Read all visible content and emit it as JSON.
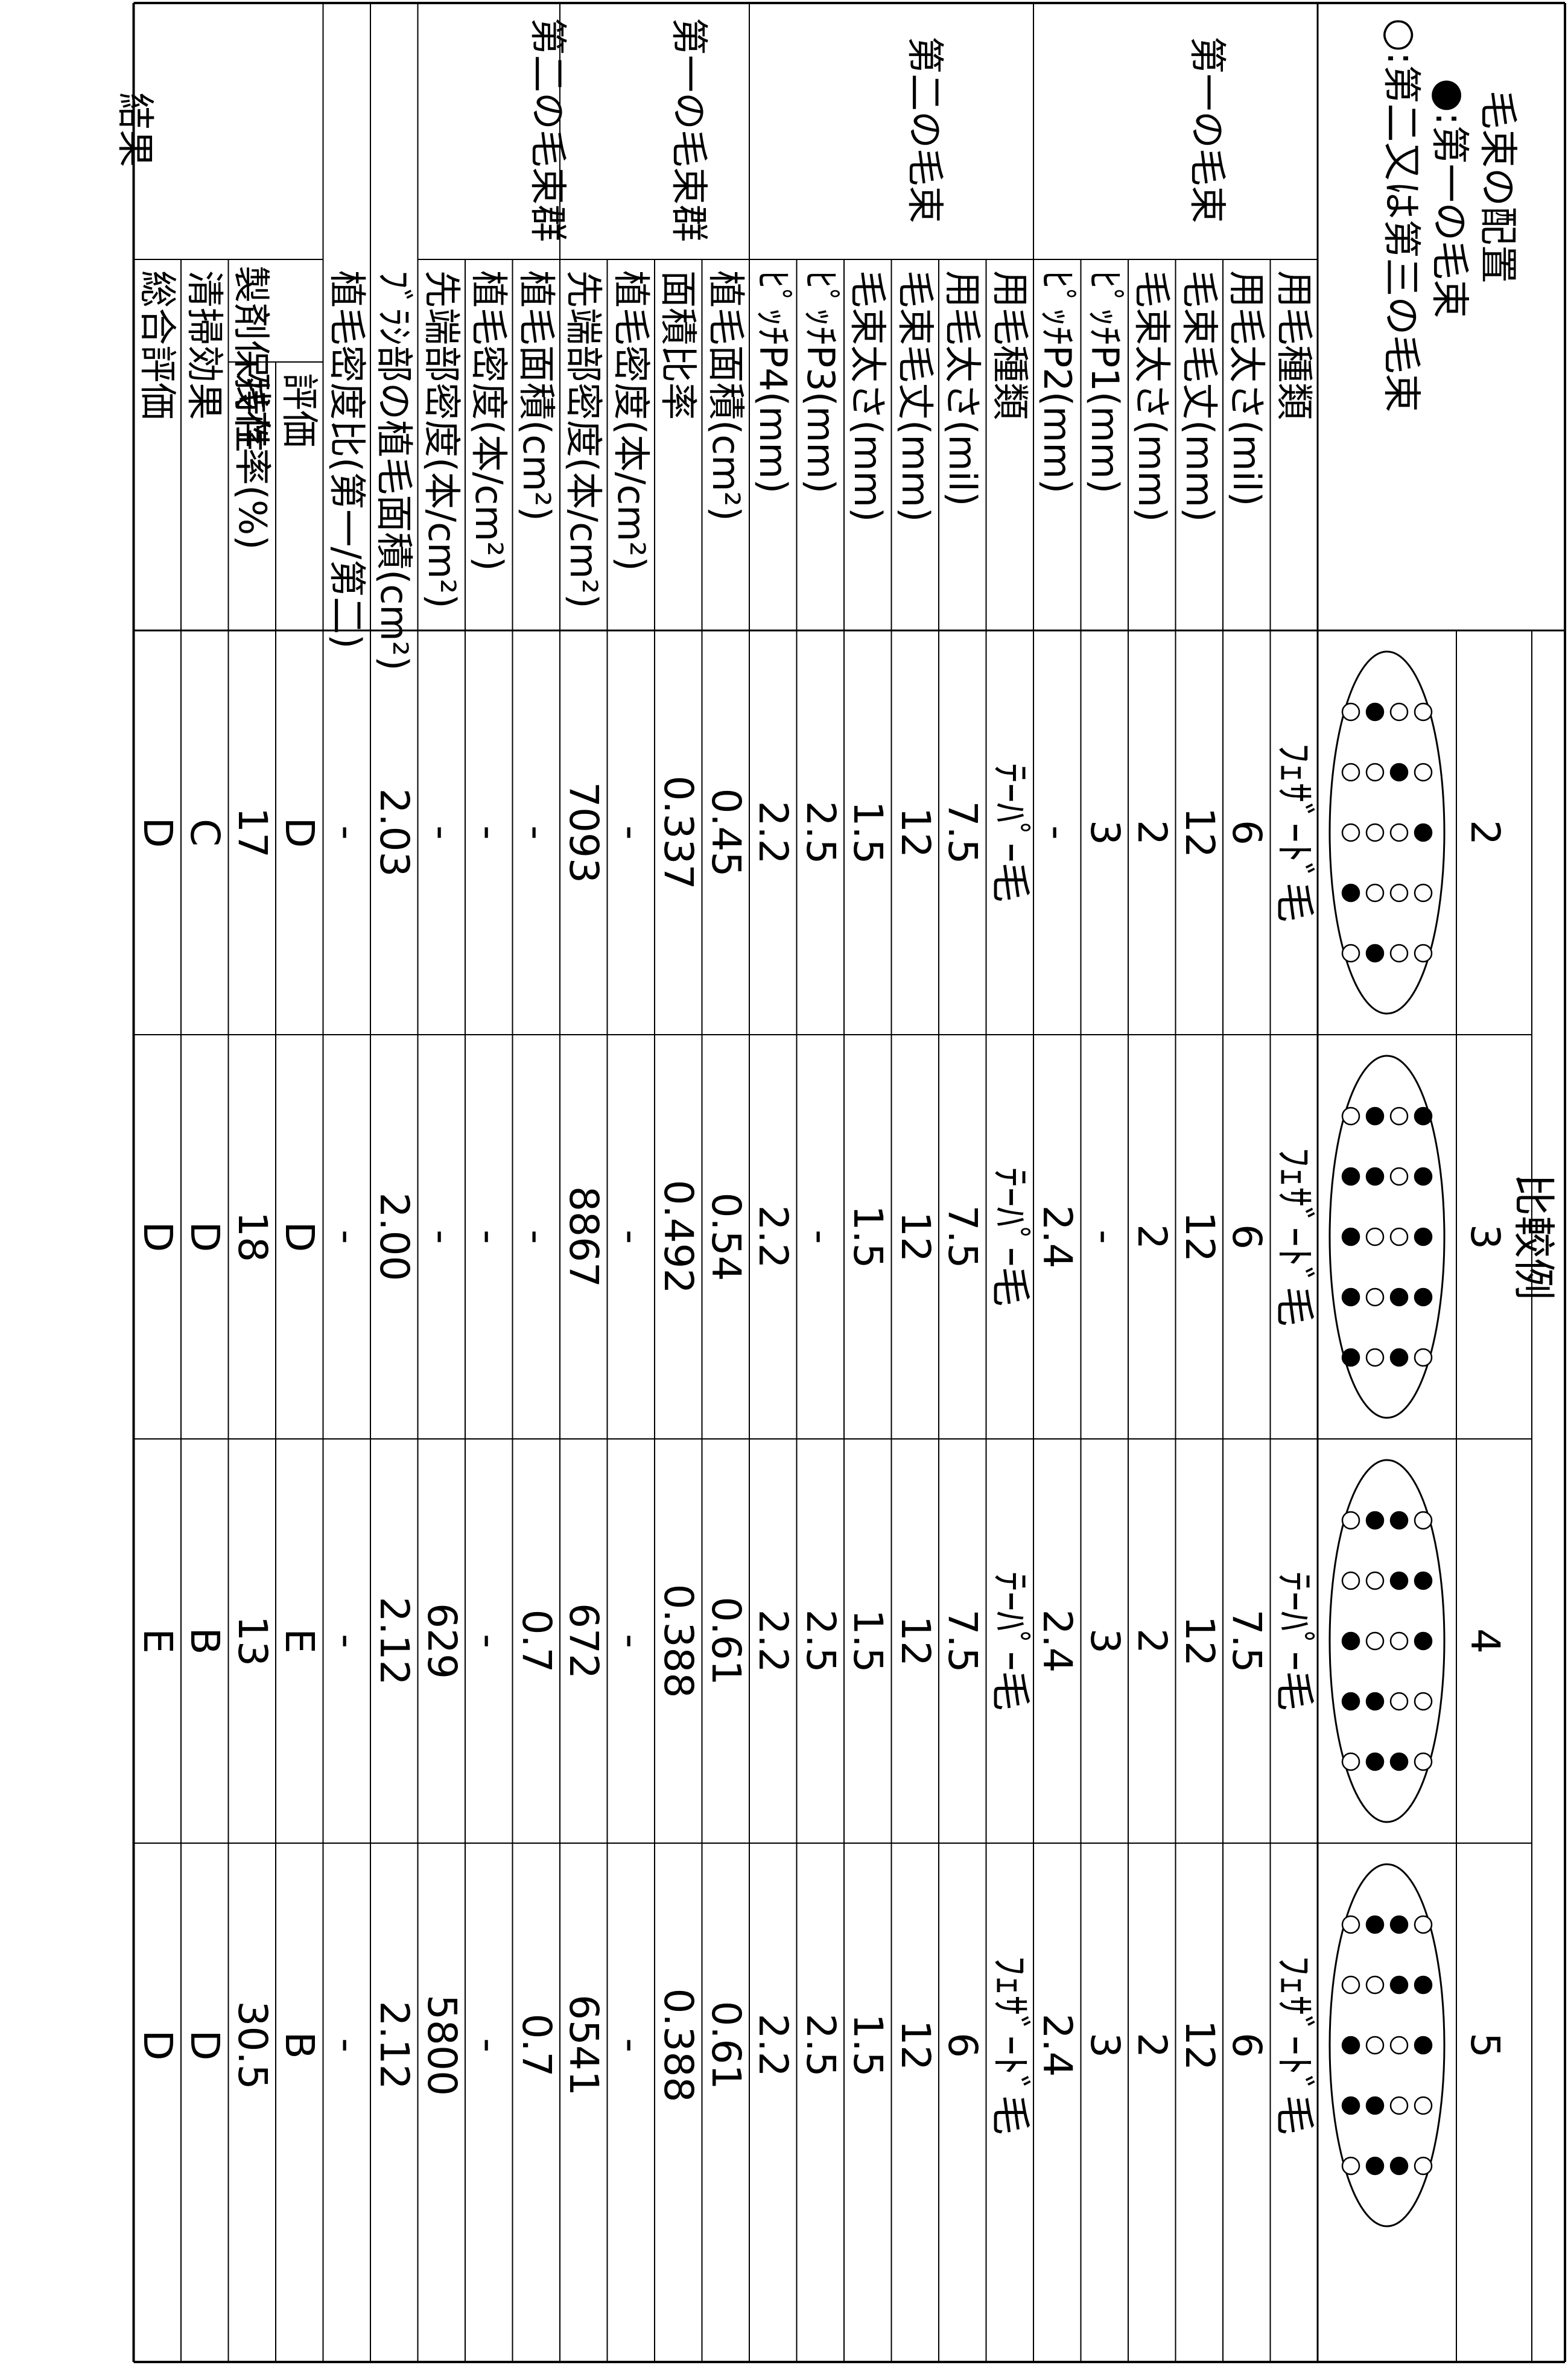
{
  "table": {
    "header": {
      "comparison_label": "比較例",
      "layout_title": "毛束の配置",
      "layout_legend_filled": "●:第一の毛束",
      "layout_legend_open": "○:第二又は第三の毛束"
    },
    "columns": [
      "2",
      "3",
      "4",
      "5"
    ],
    "groups": [
      {
        "label": "第一の毛束"
      },
      {
        "label": "第二の毛束"
      },
      {
        "label": "第一の毛束群"
      },
      {
        "label": "第二の毛束群"
      },
      {
        "label": "結果"
      }
    ],
    "rows": [
      {
        "label": "用毛種類",
        "values": [
          "ﾌｪｻﾞｰﾄﾞ毛",
          "ﾌｪｻﾞｰﾄﾞ毛",
          "ﾃｰﾊﾟｰ毛",
          "ﾌｪｻﾞｰﾄﾞ毛"
        ]
      },
      {
        "label": "用毛太さ(mil)",
        "values": [
          "6",
          "6",
          "7.5",
          "6"
        ]
      },
      {
        "label": "毛束毛丈(mm)",
        "values": [
          "12",
          "12",
          "12",
          "12"
        ]
      },
      {
        "label": "毛束太さ(mm)",
        "values": [
          "2",
          "2",
          "2",
          "2"
        ]
      },
      {
        "label": "ﾋﾟｯﾁP1(mm)",
        "values": [
          "3",
          "-",
          "3",
          "3"
        ]
      },
      {
        "label": "ﾋﾟｯﾁP2(mm)",
        "values": [
          "-",
          "2.4",
          "2.4",
          "2.4"
        ]
      },
      {
        "label": "用毛種類",
        "values": [
          "ﾃｰﾊﾟｰ毛",
          "ﾃｰﾊﾟｰ毛",
          "ﾃｰﾊﾟｰ毛",
          "ﾌｪｻﾞｰﾄﾞ毛"
        ]
      },
      {
        "label": "用毛太さ(mil)",
        "values": [
          "7.5",
          "7.5",
          "7.5",
          "6"
        ]
      },
      {
        "label": "毛束毛丈(mm)",
        "values": [
          "12",
          "12",
          "12",
          "12"
        ]
      },
      {
        "label": "毛束太さ(mm)",
        "values": [
          "1.5",
          "1.5",
          "1.5",
          "1.5"
        ]
      },
      {
        "label": "ﾋﾟｯﾁP3(mm)",
        "values": [
          "2.5",
          "-",
          "2.5",
          "2.5"
        ]
      },
      {
        "label": "ﾋﾟｯﾁP4(mm)",
        "values": [
          "2.2",
          "2.2",
          "2.2",
          "2.2"
        ]
      },
      {
        "label": "植毛面積(cm²)",
        "values": [
          "0.45",
          "0.54",
          "0.61",
          "0.61"
        ]
      },
      {
        "label": "面積比率",
        "values": [
          "0.337",
          "0.492",
          "0.388",
          "0.388"
        ]
      },
      {
        "label": "植毛密度(本/cm²)",
        "values": [
          "-",
          "-",
          "-",
          "-"
        ]
      },
      {
        "label": "先端部密度(本/cm²)",
        "values": [
          "7093",
          "8867",
          "672",
          "6541"
        ]
      },
      {
        "label": "植毛面積(cm²)",
        "values": [
          "-",
          "-",
          "0.7",
          "0.7"
        ]
      },
      {
        "label": "植毛密度(本/cm²)",
        "values": [
          "-",
          "-",
          "-",
          "-"
        ]
      },
      {
        "label": "先端部密度(本/cm²)",
        "values": [
          "-",
          "-",
          "629",
          "5800"
        ]
      },
      {
        "label": "ﾌﾞﾗｼ部の植毛面積(cm²)",
        "values": [
          "2.03",
          "2.00",
          "2.12",
          "2.12"
        ]
      },
      {
        "label": "植毛密度比(第一/第二)",
        "values": [
          "-",
          "-",
          "-",
          "-"
        ]
      },
      {
        "label": "評価",
        "values": [
          "D",
          "D",
          "E",
          "B"
        ]
      },
      {
        "label": "残存率(%)",
        "values": [
          "17",
          "18",
          "13",
          "30.5"
        ]
      },
      {
        "label": "清掃効果",
        "values": [
          "C",
          "D",
          "B",
          "D"
        ]
      },
      {
        "label": "総合評価",
        "values": [
          "D",
          "D",
          "E",
          "D"
        ]
      }
    ],
    "sub_labels": {
      "retention": "製剤保持性"
    }
  }
}
